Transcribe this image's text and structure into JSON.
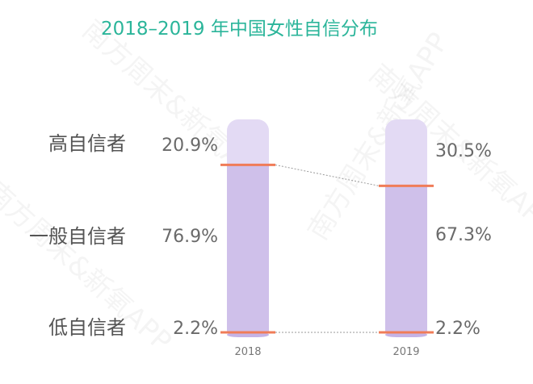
{
  "chart_data": {
    "type": "bar",
    "title": "2018–2019 年中国女性自信分布",
    "categories": [
      "2018",
      "2019"
    ],
    "series": [
      {
        "name": "高自信者",
        "values": [
          20.9,
          30.5
        ],
        "value_labels": [
          "20.9%",
          "30.5%"
        ]
      },
      {
        "name": "一般自信者",
        "values": [
          76.9,
          67.3
        ],
        "value_labels": [
          "76.9%",
          "67.3%"
        ]
      },
      {
        "name": "低自信者",
        "values": [
          2.2,
          2.2
        ],
        "value_labels": [
          "2.2%",
          "2.2%"
        ]
      }
    ],
    "stacked": true,
    "ylim": [
      0,
      100
    ],
    "colors": {
      "title": "#2bb59a",
      "high": "#e3daf4",
      "mid": "#cfc0ea",
      "low": "#c5b3e6",
      "divider": "#f07c58",
      "connector": "#9a9a9a"
    }
  },
  "watermark": "南方周末&新氧APP"
}
